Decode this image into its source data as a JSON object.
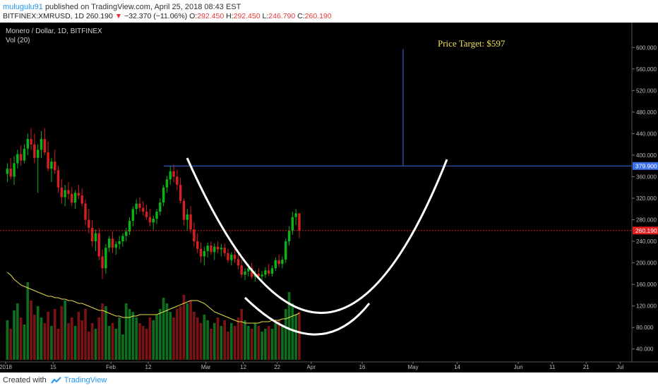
{
  "header": {
    "author": "mulugulu91",
    "published_text": "published on TradingView.com, April 25, 2018 08:43 EST",
    "symbol": "BITFINEX:XMRUSD, 1D",
    "last": "260.190",
    "change": "−32.370 (−11.06%)",
    "open_label": "O:",
    "open": "292.450",
    "high_label": "H:",
    "high": "292.450",
    "low_label": "L:",
    "low": "246.790",
    "close_label": "C:",
    "close": "260.190"
  },
  "legend": {
    "series_title": "Monero / Dollar, 1D, BITFINEX",
    "volume_title": "Vol (20)"
  },
  "annotation": {
    "price_target": "Price Target:  $597",
    "resistance_price": 379.9,
    "resistance_label": "379.900",
    "target_price": 597
  },
  "last_price_label": "260.190",
  "footer": {
    "created_with": "Created with",
    "brand": "TradingView"
  },
  "colors": {
    "background": "#000000",
    "up": "#0cb317",
    "down": "#d32020",
    "volume_up": "#0d6f1d",
    "volume_down": "#7a1414",
    "ma_line": "#e8dc4a",
    "annotation_line": "#3a6ee8",
    "price_line": "#e02020",
    "cup_curve": "#ffffff",
    "target_text": "#f0e05a"
  },
  "chart_data": {
    "type": "candlestick",
    "price_ticks": [
      40,
      80,
      120,
      160,
      200,
      240,
      280,
      320,
      360,
      400,
      440,
      480,
      520,
      560,
      600
    ],
    "price_tick_labels": [
      "40.000",
      "80.000",
      "120.000",
      "160.000",
      "200.000",
      "240.000",
      "280.000",
      "320.000",
      "360.000",
      "400.000",
      "440.000",
      "480.000",
      "520.000",
      "560.000",
      "600.000"
    ],
    "ylim": [
      20,
      620
    ],
    "x_tick_labels": [
      "2018",
      "15",
      "Feb",
      "12",
      "Mar",
      "12",
      "22",
      "Apr",
      "16",
      "May",
      "14",
      "Jun",
      "11",
      "21",
      "Jul"
    ],
    "x_tick_days": [
      0,
      14,
      31,
      42,
      59,
      70,
      80,
      90,
      105,
      120,
      133,
      151,
      161,
      171,
      181
    ],
    "xlim_days": [
      0,
      183
    ],
    "candles": [
      [
        365,
        385,
        350,
        375
      ],
      [
        375,
        395,
        355,
        360
      ],
      [
        360,
        398,
        345,
        385
      ],
      [
        385,
        410,
        375,
        402
      ],
      [
        402,
        418,
        380,
        390
      ],
      [
        390,
        420,
        385,
        412
      ],
      [
        412,
        440,
        400,
        430
      ],
      [
        430,
        450,
        410,
        420
      ],
      [
        420,
        440,
        385,
        395
      ],
      [
        395,
        420,
        330,
        410
      ],
      [
        410,
        445,
        395,
        430
      ],
      [
        430,
        450,
        400,
        405
      ],
      [
        405,
        425,
        370,
        375
      ],
      [
        375,
        395,
        350,
        388
      ],
      [
        388,
        410,
        365,
        372
      ],
      [
        372,
        380,
        330,
        340
      ],
      [
        340,
        355,
        310,
        322
      ],
      [
        322,
        345,
        305,
        335
      ],
      [
        335,
        350,
        318,
        328
      ],
      [
        328,
        340,
        305,
        312
      ],
      [
        312,
        335,
        300,
        330
      ],
      [
        330,
        345,
        318,
        325
      ],
      [
        325,
        338,
        305,
        310
      ],
      [
        310,
        318,
        270,
        280
      ],
      [
        280,
        300,
        255,
        265
      ],
      [
        265,
        280,
        230,
        240
      ],
      [
        240,
        262,
        222,
        255
      ],
      [
        255,
        265,
        205,
        212
      ],
      [
        212,
        225,
        170,
        190
      ],
      [
        190,
        235,
        180,
        228
      ],
      [
        228,
        250,
        220,
        245
      ],
      [
        245,
        258,
        218,
        228
      ],
      [
        228,
        240,
        215,
        235
      ],
      [
        235,
        250,
        225,
        240
      ],
      [
        240,
        255,
        230,
        250
      ],
      [
        250,
        265,
        240,
        258
      ],
      [
        258,
        285,
        252,
        278
      ],
      [
        278,
        305,
        268,
        300
      ],
      [
        300,
        318,
        290,
        310
      ],
      [
        310,
        322,
        295,
        302
      ],
      [
        302,
        315,
        288,
        295
      ],
      [
        295,
        308,
        280,
        285
      ],
      [
        285,
        300,
        268,
        275
      ],
      [
        275,
        288,
        262,
        282
      ],
      [
        282,
        300,
        272,
        295
      ],
      [
        295,
        320,
        288,
        312
      ],
      [
        312,
        345,
        305,
        340
      ],
      [
        340,
        362,
        330,
        355
      ],
      [
        355,
        380,
        345,
        370
      ],
      [
        370,
        382,
        350,
        360
      ],
      [
        360,
        372,
        335,
        345
      ],
      [
        345,
        358,
        310,
        315
      ],
      [
        315,
        320,
        270,
        280
      ],
      [
        280,
        300,
        260,
        290
      ],
      [
        290,
        305,
        255,
        262
      ],
      [
        262,
        275,
        230,
        240
      ],
      [
        240,
        255,
        218,
        226
      ],
      [
        226,
        238,
        200,
        212
      ],
      [
        212,
        230,
        195,
        222
      ],
      [
        222,
        238,
        210,
        232
      ],
      [
        232,
        240,
        215,
        220
      ],
      [
        220,
        236,
        205,
        230
      ],
      [
        230,
        240,
        218,
        225
      ],
      [
        225,
        235,
        212,
        228
      ],
      [
        228,
        236,
        212,
        218
      ],
      [
        218,
        226,
        200,
        205
      ],
      [
        205,
        220,
        195,
        215
      ],
      [
        215,
        225,
        200,
        207
      ],
      [
        207,
        216,
        188,
        195
      ],
      [
        195,
        205,
        172,
        178
      ],
      [
        178,
        190,
        168,
        184
      ],
      [
        184,
        198,
        175,
        190
      ],
      [
        190,
        200,
        170,
        174
      ],
      [
        174,
        186,
        165,
        180
      ],
      [
        180,
        190,
        170,
        175
      ],
      [
        175,
        185,
        165,
        178
      ],
      [
        178,
        192,
        172,
        186
      ],
      [
        186,
        198,
        176,
        180
      ],
      [
        180,
        195,
        175,
        190
      ],
      [
        190,
        210,
        185,
        205
      ],
      [
        205,
        215,
        192,
        198
      ],
      [
        198,
        212,
        190,
        206
      ],
      [
        206,
        245,
        200,
        240
      ],
      [
        240,
        268,
        232,
        260
      ],
      [
        260,
        295,
        252,
        285
      ],
      [
        285,
        300,
        270,
        292
      ],
      [
        292,
        292,
        246,
        260
      ]
    ],
    "volume": [
      28,
      22,
      35,
      40,
      30,
      25,
      55,
      42,
      32,
      38,
      30,
      26,
      34,
      24,
      36,
      22,
      38,
      42,
      26,
      30,
      24,
      34,
      28,
      36,
      20,
      26,
      22,
      30,
      40,
      38,
      24,
      26,
      22,
      30,
      18,
      40,
      36,
      34,
      30,
      26,
      24,
      22,
      30,
      28,
      32,
      36,
      44,
      40,
      34,
      30,
      36,
      38,
      46,
      40,
      42,
      34,
      30,
      26,
      32,
      28,
      22,
      26,
      30,
      24,
      28,
      20,
      26,
      24,
      30,
      36,
      28,
      24,
      22,
      26,
      24,
      20,
      22,
      24,
      22,
      26,
      28,
      24,
      36,
      48,
      40,
      32,
      34
    ],
    "ma20": [
      62,
      60,
      57,
      55,
      53,
      52,
      51,
      50,
      49,
      48,
      47,
      46,
      45,
      45,
      44,
      44,
      43,
      43,
      42,
      42,
      41,
      40,
      40,
      39,
      38,
      37,
      36,
      35,
      35,
      34,
      33,
      32,
      31,
      31,
      30,
      30,
      30,
      31,
      31,
      32,
      32,
      32,
      32,
      32,
      32,
      33,
      34,
      35,
      36,
      37,
      38,
      39,
      40,
      41,
      42,
      42,
      42,
      41,
      40,
      38,
      36,
      34,
      33,
      32,
      31,
      30,
      29,
      28,
      27,
      27,
      26,
      26,
      26,
      26,
      26,
      27,
      27,
      27,
      28,
      28,
      28,
      29,
      29,
      30,
      31,
      32,
      33
    ],
    "first_candle_day": 0
  }
}
